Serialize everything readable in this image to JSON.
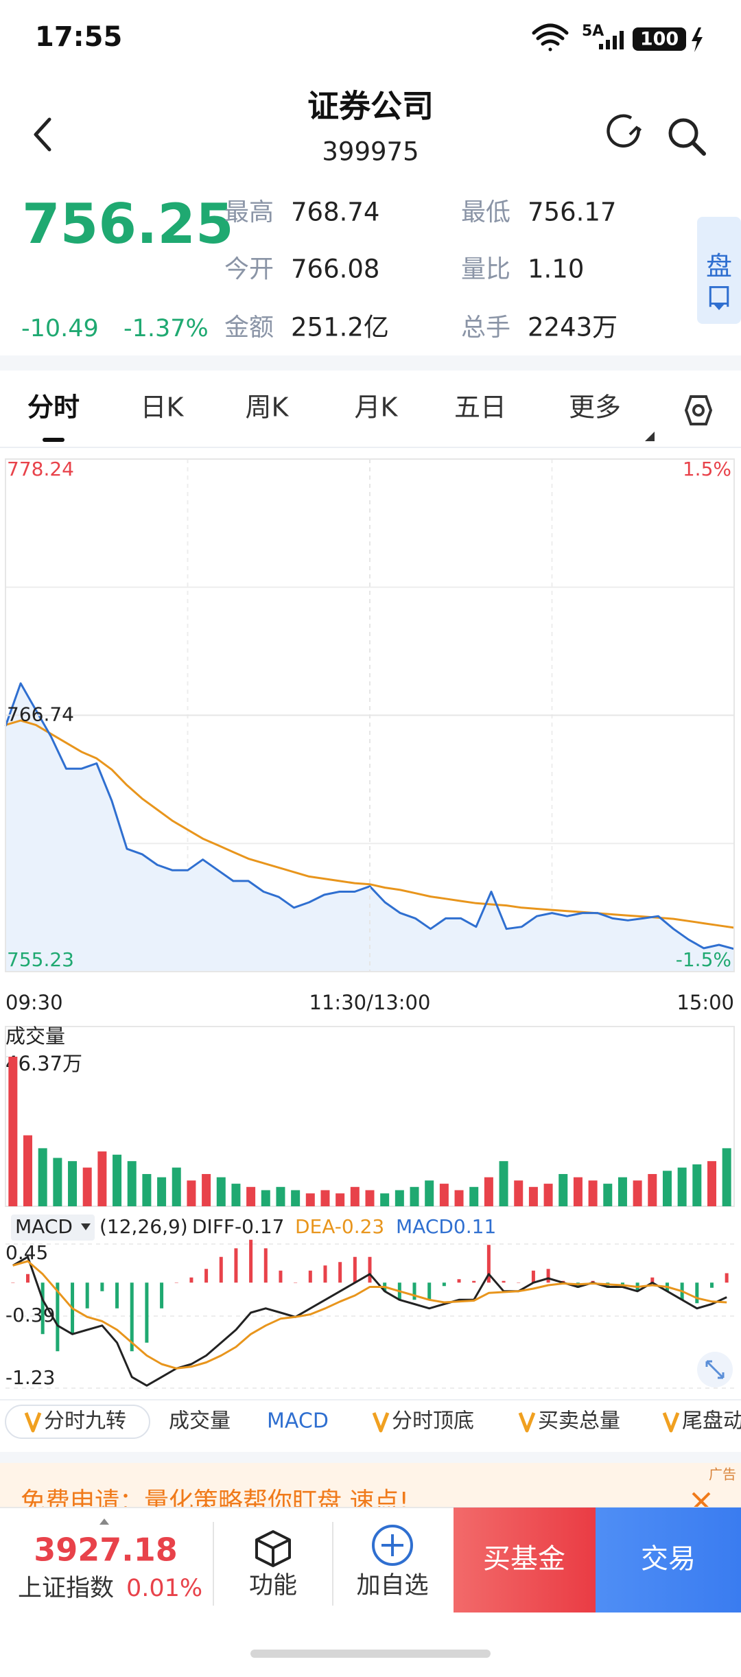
{
  "status_bar": {
    "time": "17:55",
    "network": "5A",
    "battery": "100"
  },
  "header": {
    "title": "证券公司",
    "code": "399975"
  },
  "quote": {
    "price": "756.25",
    "change": "-10.49",
    "change_pct": "-1.37%",
    "stats": [
      {
        "label": "最高",
        "value": "768.74"
      },
      {
        "label": "最低",
        "value": "756.17"
      },
      {
        "label": "今开",
        "value": "766.08"
      },
      {
        "label": "量比",
        "value": "1.10"
      },
      {
        "label": "金额",
        "value": "251.2亿"
      },
      {
        "label": "总手",
        "value": "2243万"
      }
    ],
    "side_tab": "盘口"
  },
  "tabs": [
    "分时",
    "日K",
    "周K",
    "月K",
    "五日",
    "更多"
  ],
  "chart_data": [
    {
      "type": "line",
      "fill": "#eaf2fc",
      "x": [
        0,
        5,
        10,
        15,
        20,
        25,
        30,
        35,
        40,
        45,
        50,
        55,
        60,
        65,
        70,
        75,
        80,
        85,
        90,
        95,
        100,
        105,
        110,
        115,
        120,
        125,
        130,
        135,
        140,
        145,
        150,
        155,
        160,
        165,
        170,
        175,
        180,
        185,
        190,
        195,
        200,
        205,
        210,
        215,
        220,
        225,
        230,
        235,
        240
      ],
      "xlim": [
        0,
        240
      ],
      "xticks": [
        {
          "value": 0,
          "label": "09:30"
        },
        {
          "value": 120,
          "label": "11:30/13:00"
        },
        {
          "value": 240,
          "label": "15:00"
        }
      ],
      "ylim": [
        755.23,
        778.24
      ],
      "yticks": [
        755.23,
        766.74,
        778.24
      ],
      "y2lim": [
        -1.5,
        1.5
      ],
      "y2ticks": [
        {
          "value": -1.5,
          "label": "-1.5%"
        },
        {
          "value": 1.5,
          "label": "1.5%"
        }
      ],
      "series": [
        {
          "color": "#2f6fd0",
          "values": [
            766.25,
            768.17,
            766.97,
            765.78,
            764.34,
            764.34,
            764.58,
            762.9,
            760.74,
            760.5,
            760.02,
            759.78,
            759.78,
            760.26,
            759.78,
            759.3,
            759.3,
            758.82,
            758.58,
            758.1,
            758.34,
            758.68,
            758.82,
            758.82,
            759.06,
            758.34,
            757.86,
            757.62,
            757.15,
            757.62,
            757.62,
            757.24,
            758.82,
            757.15,
            757.24,
            757.72,
            757.86,
            757.72,
            757.86,
            757.86,
            757.62,
            757.53,
            757.62,
            757.72,
            757.15,
            756.67,
            756.28,
            756.43,
            756.25
          ]
        },
        {
          "color": "#e8951c",
          "values": [
            766.3,
            766.5,
            766.3,
            765.9,
            765.5,
            765.1,
            764.8,
            764.3,
            763.6,
            763.0,
            762.5,
            762.0,
            761.6,
            761.2,
            760.9,
            760.6,
            760.3,
            760.1,
            759.9,
            759.7,
            759.5,
            759.4,
            759.3,
            759.2,
            759.15,
            759.0,
            758.9,
            758.75,
            758.6,
            758.5,
            758.4,
            758.3,
            758.25,
            758.2,
            758.1,
            758.05,
            758.0,
            757.95,
            757.9,
            757.85,
            757.8,
            757.75,
            757.7,
            757.65,
            757.6,
            757.5,
            757.4,
            757.3,
            757.2
          ]
        }
      ]
    },
    {
      "type": "bar",
      "title": "成交量",
      "values": [
        46.37,
        22,
        18,
        15,
        14,
        12,
        17,
        16,
        14,
        10,
        9,
        12,
        8,
        10,
        9,
        7,
        6,
        5,
        6,
        5,
        4,
        5,
        4,
        6,
        5,
        4,
        5,
        6,
        8,
        7,
        5,
        6,
        9,
        14,
        8,
        6,
        7,
        10,
        9,
        8,
        7,
        9,
        8,
        10,
        11,
        12,
        13,
        14,
        18
      ],
      "ylim": [
        0,
        46.37
      ],
      "yticks": [
        {
          "value": 46.37,
          "label": "46.37万"
        }
      ],
      "up_color": "#e8424a",
      "down_color": "#1fa971"
    },
    {
      "type": "macd",
      "title": "MACD",
      "params": "(12,26,9)",
      "ylim": [
        -1.23,
        0.45
      ],
      "yticks": [
        0.45,
        -0.39,
        -1.23
      ],
      "series": [
        {
          "name": "DIFF-0.17",
          "color": "#222222",
          "values": [
            0.2,
            0.3,
            -0.2,
            -0.5,
            -0.6,
            -0.55,
            -0.5,
            -0.7,
            -1.1,
            -1.2,
            -1.1,
            -1.0,
            -0.95,
            -0.85,
            -0.7,
            -0.55,
            -0.35,
            -0.3,
            -0.35,
            -0.4,
            -0.3,
            -0.2,
            -0.1,
            0,
            0.1,
            -0.1,
            -0.2,
            -0.25,
            -0.3,
            -0.25,
            -0.2,
            -0.2,
            0.1,
            -0.1,
            -0.1,
            0,
            0.05,
            0,
            -0.05,
            0,
            -0.05,
            -0.05,
            -0.1,
            0,
            -0.1,
            -0.2,
            -0.3,
            -0.25,
            -0.17
          ]
        },
        {
          "name": "DEA-0.23",
          "color": "#e8951c",
          "values": [
            0.2,
            0.25,
            0.1,
            -0.1,
            -0.3,
            -0.4,
            -0.45,
            -0.55,
            -0.7,
            -0.85,
            -0.95,
            -1.0,
            -0.98,
            -0.93,
            -0.85,
            -0.75,
            -0.6,
            -0.5,
            -0.42,
            -0.4,
            -0.37,
            -0.3,
            -0.22,
            -0.15,
            -0.05,
            -0.05,
            -0.1,
            -0.15,
            -0.2,
            -0.23,
            -0.22,
            -0.21,
            -0.12,
            -0.11,
            -0.1,
            -0.07,
            -0.03,
            -0.01,
            -0.02,
            -0.01,
            -0.02,
            -0.03,
            -0.05,
            -0.03,
            -0.05,
            -0.1,
            -0.18,
            -0.22,
            -0.23
          ]
        }
      ],
      "histogram": {
        "name": "MACD0.11",
        "color": "#2f6fd0",
        "up_color": "#e8424a",
        "down_color": "#1fa971",
        "values": [
          0,
          0.1,
          -0.6,
          -0.8,
          -0.6,
          -0.3,
          -0.1,
          -0.3,
          -0.8,
          -0.7,
          -0.3,
          0,
          0.06,
          0.16,
          0.3,
          0.4,
          0.5,
          0.4,
          0.14,
          0,
          0.14,
          0.2,
          0.24,
          0.3,
          0.3,
          -0.1,
          -0.2,
          -0.2,
          -0.2,
          -0.04,
          0.04,
          0.02,
          0.44,
          0.02,
          0,
          0.14,
          0.16,
          0.02,
          -0.06,
          0.02,
          -0.06,
          -0.04,
          -0.1,
          0.06,
          -0.1,
          -0.2,
          -0.24,
          -0.06,
          0.11
        ]
      }
    }
  ],
  "indicators": [
    "分时九转",
    "成交量",
    "MACD",
    "分时顶底",
    "买卖总量",
    "尾盘动"
  ],
  "ad": {
    "text": "免费申请：量化策略帮你盯盘 速点!",
    "tag": "广告"
  },
  "bottom_bar": {
    "index_value": "3927.18",
    "index_name": "上证指数",
    "index_change": "0.01%",
    "function": "功能",
    "watchlist": "加自选",
    "buy_fund": "买基金",
    "trade": "交易"
  }
}
